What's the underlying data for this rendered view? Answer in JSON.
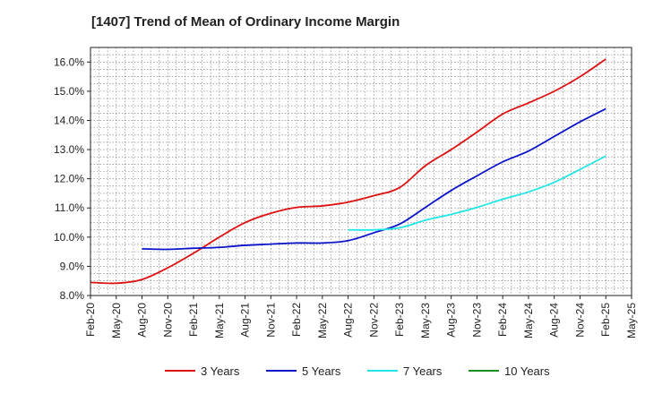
{
  "chart_data": {
    "type": "line",
    "title": "[1407]  Trend of Mean of Ordinary Income Margin",
    "xlabel": "",
    "ylabel": "",
    "y_unit": "%",
    "ylim": [
      8.0,
      16.5
    ],
    "y_ticks": [
      8.0,
      9.0,
      10.0,
      11.0,
      12.0,
      13.0,
      14.0,
      15.0,
      16.0
    ],
    "y_tick_labels": [
      "8.0%",
      "9.0%",
      "10.0%",
      "11.0%",
      "12.0%",
      "13.0%",
      "14.0%",
      "15.0%",
      "16.0%"
    ],
    "x_tick_labels": [
      "Feb-20",
      "May-20",
      "Aug-20",
      "Nov-20",
      "Feb-21",
      "May-21",
      "Aug-21",
      "Nov-21",
      "Feb-22",
      "May-22",
      "Aug-22",
      "Nov-22",
      "Feb-23",
      "May-23",
      "Aug-23",
      "Nov-23",
      "Feb-24",
      "May-24",
      "Aug-24",
      "Nov-24",
      "Feb-25",
      "May-25"
    ],
    "grid": true,
    "legend_position": "bottom",
    "series": [
      {
        "name": "3 Years",
        "color": "#dd1111",
        "x": [
          "Feb-20",
          "May-20",
          "Aug-20",
          "Nov-20",
          "Feb-21",
          "May-21",
          "Aug-21",
          "Nov-21",
          "Feb-22",
          "May-22",
          "Aug-22",
          "Nov-22",
          "Feb-23",
          "May-23",
          "Aug-23",
          "Nov-23",
          "Feb-24",
          "May-24",
          "Aug-24",
          "Nov-24",
          "Feb-25"
        ],
        "values": [
          8.45,
          8.42,
          8.55,
          8.95,
          9.45,
          10.0,
          10.5,
          10.82,
          11.02,
          11.07,
          11.2,
          11.42,
          11.7,
          12.45,
          13.0,
          13.6,
          14.22,
          14.6,
          15.0,
          15.5,
          16.1
        ]
      },
      {
        "name": "5 Years",
        "color": "#0a14c8",
        "x": [
          "Aug-20",
          "Nov-20",
          "Feb-21",
          "May-21",
          "Aug-21",
          "Nov-21",
          "Feb-22",
          "May-22",
          "Aug-22",
          "Nov-22",
          "Feb-23",
          "May-23",
          "Aug-23",
          "Nov-23",
          "Feb-24",
          "May-24",
          "Aug-24",
          "Nov-24",
          "Feb-25"
        ],
        "values": [
          9.6,
          9.58,
          9.62,
          9.65,
          9.72,
          9.76,
          9.8,
          9.8,
          9.88,
          10.15,
          10.45,
          11.02,
          11.6,
          12.1,
          12.58,
          12.95,
          13.45,
          13.95,
          14.4
        ]
      },
      {
        "name": "7 Years",
        "color": "#22e6e6",
        "x": [
          "Aug-22",
          "Nov-22",
          "Feb-23",
          "May-23",
          "Aug-23",
          "Nov-23",
          "Feb-24",
          "May-24",
          "Aug-24",
          "Nov-24",
          "Feb-25"
        ],
        "values": [
          10.25,
          10.25,
          10.32,
          10.58,
          10.78,
          11.02,
          11.3,
          11.55,
          11.88,
          12.32,
          12.78
        ]
      },
      {
        "name": "10 Years",
        "color": "#1e8c1e",
        "x": [],
        "values": []
      }
    ]
  }
}
